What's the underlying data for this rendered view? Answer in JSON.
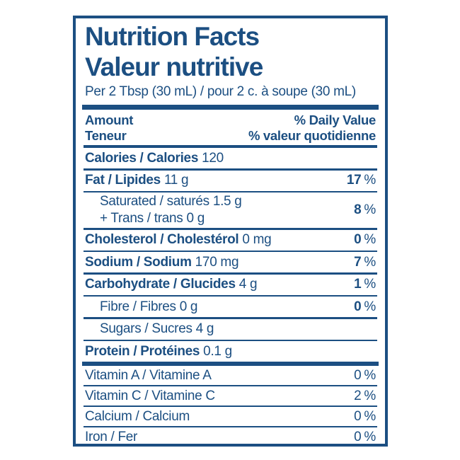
{
  "colors": {
    "blue": "#1C4F82",
    "background": "#FFFFFF"
  },
  "title": {
    "en": "Nutrition Facts",
    "fr": "Valeur nutritive"
  },
  "serving": "Per 2 Tbsp (30 mL) / pour 2 c. à soupe (30 mL)",
  "columns": {
    "amount_en": "Amount",
    "amount_fr": "Teneur",
    "dv_en": "% Daily Value",
    "dv_fr": "% valeur quotidienne"
  },
  "percent_sign": "%",
  "nutrients": {
    "calories": {
      "label": "Calories / Calories",
      "value": "120"
    },
    "fat": {
      "label": "Fat / Lipides",
      "value": "11 g",
      "dv": "17"
    },
    "saturated": {
      "line1": "Saturated / saturés 1.5 g",
      "line2": "+ Trans / trans 0 g",
      "dv": "8"
    },
    "cholesterol": {
      "label": "Cholesterol / Cholestérol",
      "value": "0 mg",
      "dv": "0"
    },
    "sodium": {
      "label": "Sodium / Sodium",
      "value": "170 mg",
      "dv": "7"
    },
    "carbohydrate": {
      "label": "Carbohydrate / Glucides",
      "value": "4 g",
      "dv": "1"
    },
    "fibre": {
      "label": "Fibre / Fibres 0 g",
      "dv": "0"
    },
    "sugars": {
      "label": "Sugars / Sucres 4 g"
    },
    "protein": {
      "label": "Protein / Protéines",
      "value": "0.1 g"
    }
  },
  "micronutrients": [
    {
      "label": "Vitamin A / Vitamine A",
      "dv": "0"
    },
    {
      "label": "Vitamin C / Vitamine C",
      "dv": "2"
    },
    {
      "label": "Calcium / Calcium",
      "dv": "0"
    },
    {
      "label": "Iron / Fer",
      "dv": "0"
    }
  ]
}
